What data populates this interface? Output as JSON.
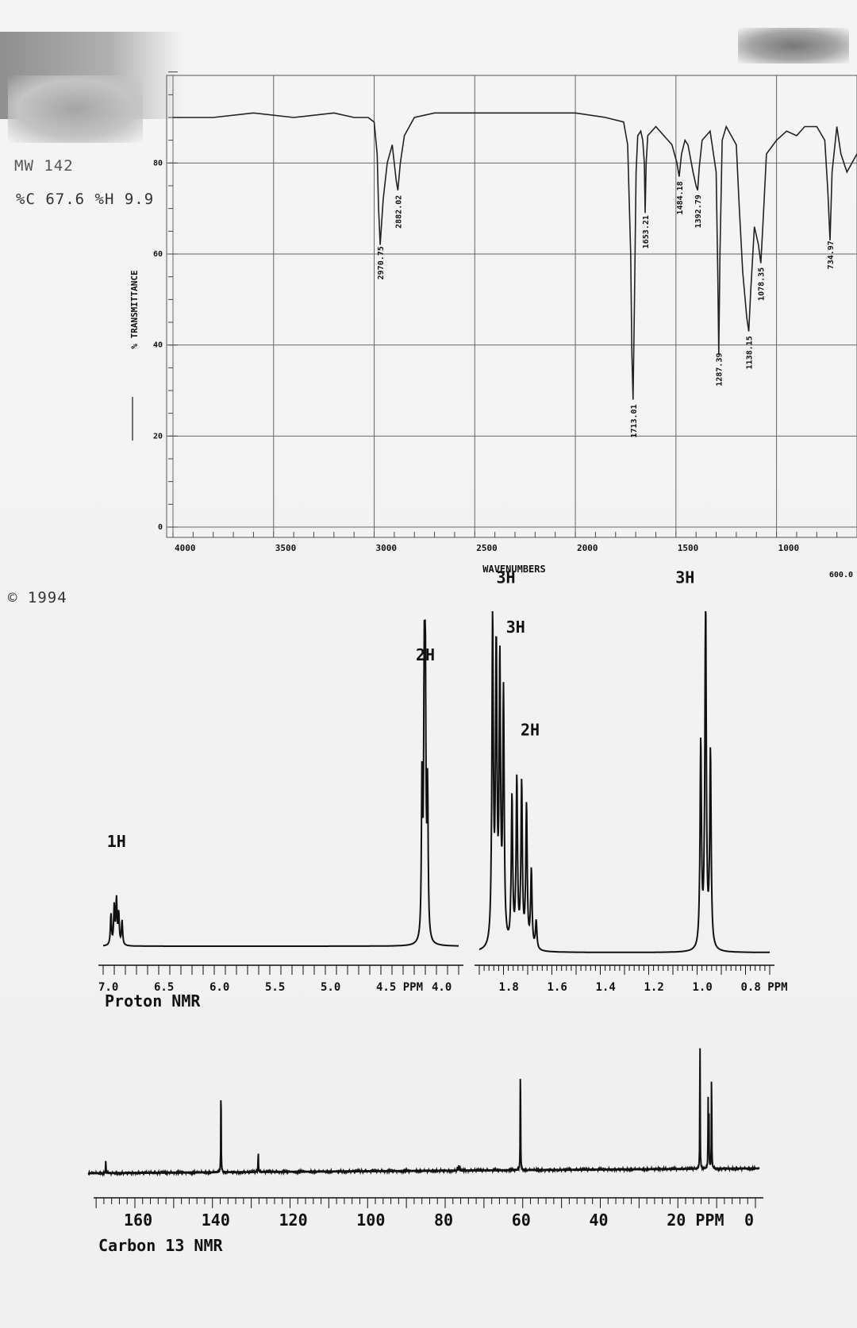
{
  "header": {
    "molecular_weight": "MW 142",
    "composition": "%C 67.6 %H 9.9"
  },
  "footer": {
    "copyright": "© 1994"
  },
  "chart_data": [
    {
      "type": "line",
      "title": "",
      "xlabel": "WAVENUMBERS",
      "ylabel": "% TRANSMITTANCE",
      "xlim": [
        4000,
        600
      ],
      "ylim": [
        0,
        100
      ],
      "x_ticks": [
        "4000",
        "3500",
        "3000",
        "2500",
        "2000",
        "1500",
        "1000"
      ],
      "x_tick_values": [
        4000,
        3500,
        3000,
        2500,
        2000,
        1500,
        1000
      ],
      "x_extra_label": "600.0",
      "y_ticks": [
        "0",
        "20",
        "40",
        "60",
        "80"
      ],
      "y_tick_values": [
        0,
        20,
        40,
        60,
        80
      ],
      "grid": true,
      "series": [
        {
          "x": [
            4000,
            3800,
            3600,
            3400,
            3200,
            3100,
            3030,
            3000,
            2985,
            2978,
            2970,
            2955,
            2935,
            2910,
            2890,
            2882,
            2870,
            2850,
            2800,
            2700,
            2500,
            2200,
            2000,
            1850,
            1760,
            1740,
            1725,
            1719,
            1713,
            1706,
            1698,
            1690,
            1675,
            1665,
            1657,
            1653,
            1648,
            1640,
            1600,
            1560,
            1520,
            1495,
            1484,
            1472,
            1455,
            1440,
            1415,
            1400,
            1392,
            1384,
            1370,
            1330,
            1300,
            1292,
            1287,
            1281,
            1270,
            1250,
            1225,
            1200,
            1185,
            1168,
            1148,
            1138,
            1128,
            1110,
            1090,
            1078,
            1068,
            1050,
            1000,
            950,
            900,
            860,
            800,
            760,
            745,
            734,
            724,
            700,
            680,
            650,
            600
          ],
          "y": [
            90,
            90,
            91,
            90,
            91,
            90,
            90,
            89,
            82,
            70,
            62,
            72,
            80,
            84,
            76,
            74,
            80,
            86,
            90,
            91,
            91,
            91,
            91,
            90,
            89,
            84,
            60,
            38,
            28,
            50,
            78,
            86,
            87,
            85,
            80,
            69,
            80,
            86,
            88,
            86,
            84,
            80,
            77,
            82,
            85,
            84,
            78,
            75,
            74,
            79,
            85,
            87,
            78,
            55,
            38,
            60,
            85,
            88,
            86,
            84,
            70,
            56,
            46,
            43,
            52,
            66,
            62,
            58,
            66,
            82,
            85,
            87,
            86,
            88,
            88,
            85,
            74,
            63,
            78,
            88,
            82,
            78,
            82
          ]
        }
      ],
      "peak_labels": [
        {
          "x": 2970.75,
          "label": "2970.75"
        },
        {
          "x": 2882.02,
          "label": "2882.02"
        },
        {
          "x": 1713.01,
          "label": "1713.01"
        },
        {
          "x": 1653.21,
          "label": "1653.21"
        },
        {
          "x": 1484.18,
          "label": "1484.18"
        },
        {
          "x": 1392.79,
          "label": "1392.79"
        },
        {
          "x": 1287.39,
          "label": "1287.39"
        },
        {
          "x": 1138.15,
          "label": "1138.15"
        },
        {
          "x": 1078.35,
          "label": "1078.35"
        },
        {
          "x": 734.97,
          "label": "734.97"
        }
      ]
    },
    {
      "type": "line",
      "title": "Proton NMR",
      "xlabel": "PPM",
      "ylabel": "",
      "panels": [
        {
          "xlim": [
            7.0,
            3.8
          ],
          "x_ticks": [
            "7.0",
            "6.5",
            "6.0",
            "5.5",
            "5.0",
            "4.5 PPM",
            "4.0"
          ],
          "x_tick_values": [
            7.0,
            6.5,
            6.0,
            5.5,
            5.0,
            4.5,
            4.0
          ],
          "peaks": [
            {
              "ppm": 6.93,
              "height": 0.09
            },
            {
              "ppm": 6.9,
              "height": 0.11
            },
            {
              "ppm": 6.88,
              "height": 0.13
            },
            {
              "ppm": 6.86,
              "height": 0.09
            },
            {
              "ppm": 6.83,
              "height": 0.07
            },
            {
              "ppm": 4.13,
              "height": 0.45
            },
            {
              "ppm": 4.11,
              "height": 0.68
            },
            {
              "ppm": 4.1,
              "height": 0.72
            },
            {
              "ppm": 4.08,
              "height": 0.42
            }
          ],
          "integrations": [
            {
              "ppm": 6.88,
              "label": "1H",
              "level": 0.26
            },
            {
              "ppm": 4.1,
              "label": "2H",
              "level": 0.75
            }
          ]
        },
        {
          "xlim": [
            1.9,
            0.7
          ],
          "x_ticks": [
            "1.8",
            "1.6",
            "1.4",
            "1.2",
            "1.0",
            "0.8 PPM"
          ],
          "x_tick_values": [
            1.8,
            1.6,
            1.4,
            1.2,
            1.0,
            0.8
          ],
          "peaks": [
            {
              "ppm": 1.845,
              "height": 0.92
            },
            {
              "ppm": 1.83,
              "height": 0.82
            },
            {
              "ppm": 1.815,
              "height": 0.78
            },
            {
              "ppm": 1.8,
              "height": 0.7
            },
            {
              "ppm": 1.765,
              "height": 0.42
            },
            {
              "ppm": 1.745,
              "height": 0.47
            },
            {
              "ppm": 1.725,
              "height": 0.46
            },
            {
              "ppm": 1.705,
              "height": 0.4
            },
            {
              "ppm": 1.685,
              "height": 0.22
            },
            {
              "ppm": 1.665,
              "height": 0.08
            },
            {
              "ppm": 0.985,
              "height": 0.58
            },
            {
              "ppm": 0.965,
              "height": 1.0
            },
            {
              "ppm": 0.945,
              "height": 0.55
            }
          ],
          "integrations": [
            {
              "ppm": 1.79,
              "label": "3H",
              "level": 0.97
            },
            {
              "ppm": 1.75,
              "label": "3H",
              "level": 0.84
            },
            {
              "ppm": 1.69,
              "label": "2H",
              "level": 0.57
            },
            {
              "ppm": 1.05,
              "label": "3H",
              "level": 0.97
            }
          ]
        }
      ]
    },
    {
      "type": "line",
      "title": "Carbon 13 NMR",
      "xlabel": "PPM",
      "ylabel": "",
      "xlim": [
        172,
        0
      ],
      "x_ticks": [
        "160",
        "140",
        "120",
        "100",
        "80",
        "60",
        "40",
        "20 PPM",
        "0"
      ],
      "x_tick_values": [
        160,
        140,
        120,
        100,
        80,
        60,
        40,
        20,
        0
      ],
      "peaks": [
        {
          "ppm": 167.5,
          "height": 0.11
        },
        {
          "ppm": 137.8,
          "height": 0.73
        },
        {
          "ppm": 128.2,
          "height": 0.17
        },
        {
          "ppm": 76.8,
          "height": 0.03
        },
        {
          "ppm": 76.5,
          "height": 0.035
        },
        {
          "ppm": 76.2,
          "height": 0.03
        },
        {
          "ppm": 60.6,
          "height": 0.9
        },
        {
          "ppm": 14.3,
          "height": 0.97
        },
        {
          "ppm": 12.2,
          "height": 0.49
        },
        {
          "ppm": 12.0,
          "height": 0.45
        },
        {
          "ppm": 11.3,
          "height": 0.78
        }
      ]
    }
  ]
}
